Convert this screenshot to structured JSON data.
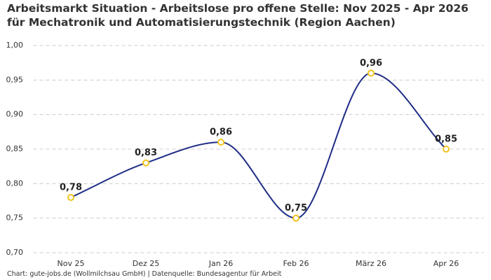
{
  "chart_data": {
    "type": "line",
    "title": "Arbeitsmarkt Situation - Arbeitslose pro offene Stelle: Nov 2025 - Apr 2026 für Mechatronik und Automatisierungstechnik (Region Aachen)",
    "categories": [
      "Nov 25",
      "Dez 25",
      "Jan 26",
      "Feb 26",
      "März 26",
      "Apr 26"
    ],
    "values": [
      0.78,
      0.83,
      0.86,
      0.75,
      0.96,
      0.85
    ],
    "value_labels": [
      "0,78",
      "0,83",
      "0,86",
      "0,75",
      "0,96",
      "0,85"
    ],
    "color": "#1f2d86",
    "marker_color": "#f2c31b",
    "ylim": [
      0.7,
      1.0
    ],
    "yticks": [
      {
        "value": 0.7,
        "label": "0,70"
      },
      {
        "value": 0.75,
        "label": "0,75"
      },
      {
        "value": 0.8,
        "label": "0,80"
      },
      {
        "value": 0.85,
        "label": "0,85"
      },
      {
        "value": 0.9,
        "label": "0,90"
      },
      {
        "value": 0.95,
        "label": "0,95"
      },
      {
        "value": 1.0,
        "label": "1,00"
      }
    ],
    "grid": true,
    "source": "Chart: gute-jobs.de (Wollmilchsau GmbH) | Datenquelle: Bundesagentur für Arbeit"
  }
}
